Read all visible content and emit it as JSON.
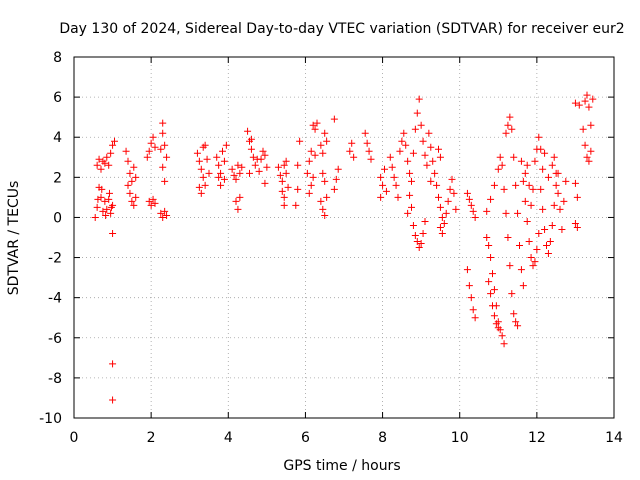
{
  "chart_data": {
    "type": "scatter",
    "title": "Day 130 of 2024, Sidereal Day-to-day VTEC variation (SDTVAR) for receiver eur2",
    "xlabel": "GPS time / hours",
    "ylabel": "SDTVAR / TECUs",
    "xlim": [
      0,
      14
    ],
    "ylim": [
      -10,
      8
    ],
    "xticks": [
      0,
      2,
      4,
      6,
      8,
      10,
      12,
      14
    ],
    "yticks": [
      -10,
      -8,
      -6,
      -4,
      -2,
      0,
      2,
      4,
      6,
      8
    ],
    "grid": true,
    "marker": "+",
    "color": "#ff0000",
    "series": [
      {
        "name": "SDTVAR",
        "points": [
          [
            0.6,
            2.6
          ],
          [
            0.65,
            2.9
          ],
          [
            0.7,
            2.4
          ],
          [
            0.75,
            2.8
          ],
          [
            0.8,
            2.7
          ],
          [
            0.85,
            3.0
          ],
          [
            0.9,
            2.6
          ],
          [
            0.95,
            3.2
          ],
          [
            1.0,
            3.6
          ],
          [
            1.05,
            3.8
          ],
          [
            0.55,
            0.0
          ],
          [
            0.6,
            0.5
          ],
          [
            0.65,
            1.5
          ],
          [
            0.7,
            1.0
          ],
          [
            0.75,
            0.3
          ],
          [
            0.8,
            0.8
          ],
          [
            0.85,
            0.4
          ],
          [
            0.9,
            0.9
          ],
          [
            0.95,
            0.2
          ],
          [
            1.0,
            0.6
          ],
          [
            0.62,
            0.9
          ],
          [
            0.72,
            1.4
          ],
          [
            0.82,
            0.1
          ],
          [
            0.92,
            1.2
          ],
          [
            0.97,
            0.5
          ],
          [
            1.0,
            -0.8
          ],
          [
            1.0,
            -7.3
          ],
          [
            1.0,
            -9.1
          ],
          [
            1.35,
            3.3
          ],
          [
            1.4,
            2.8
          ],
          [
            1.45,
            2.2
          ],
          [
            1.5,
            1.8
          ],
          [
            1.55,
            2.5
          ],
          [
            1.6,
            2.0
          ],
          [
            1.45,
            1.2
          ],
          [
            1.5,
            0.8
          ],
          [
            1.55,
            0.6
          ],
          [
            1.6,
            1.0
          ],
          [
            1.4,
            1.6
          ],
          [
            1.9,
            3.0
          ],
          [
            1.95,
            3.3
          ],
          [
            2.0,
            3.7
          ],
          [
            2.05,
            4.0
          ],
          [
            2.1,
            3.5
          ],
          [
            1.95,
            0.8
          ],
          [
            2.0,
            0.6
          ],
          [
            2.05,
            0.9
          ],
          [
            2.1,
            0.7
          ],
          [
            2.25,
            3.4
          ],
          [
            2.3,
            4.2
          ],
          [
            2.35,
            3.6
          ],
          [
            2.4,
            3.0
          ],
          [
            2.3,
            4.7
          ],
          [
            2.25,
            0.2
          ],
          [
            2.3,
            0.0
          ],
          [
            2.35,
            0.3
          ],
          [
            2.4,
            0.1
          ],
          [
            2.3,
            2.5
          ],
          [
            2.35,
            1.8
          ],
          [
            3.2,
            3.2
          ],
          [
            3.25,
            2.8
          ],
          [
            3.3,
            2.4
          ],
          [
            3.35,
            2.0
          ],
          [
            3.4,
            1.6
          ],
          [
            3.3,
            1.2
          ],
          [
            3.35,
            3.5
          ],
          [
            3.45,
            2.9
          ],
          [
            3.5,
            2.2
          ],
          [
            3.4,
            3.6
          ],
          [
            3.25,
            1.5
          ],
          [
            3.7,
            3.0
          ],
          [
            3.75,
            2.6
          ],
          [
            3.8,
            2.2
          ],
          [
            3.85,
            3.3
          ],
          [
            3.9,
            2.8
          ],
          [
            3.95,
            3.6
          ],
          [
            3.8,
            1.6
          ],
          [
            3.9,
            1.9
          ],
          [
            3.75,
            2.0
          ],
          [
            4.1,
            2.4
          ],
          [
            4.15,
            2.1
          ],
          [
            4.2,
            1.9
          ],
          [
            4.25,
            2.6
          ],
          [
            4.3,
            2.2
          ],
          [
            4.2,
            0.8
          ],
          [
            4.25,
            0.4
          ],
          [
            4.3,
            1.0
          ],
          [
            4.35,
            2.5
          ],
          [
            4.5,
            4.3
          ],
          [
            4.55,
            3.8
          ],
          [
            4.6,
            3.4
          ],
          [
            4.65,
            3.0
          ],
          [
            4.7,
            2.6
          ],
          [
            4.55,
            2.2
          ],
          [
            4.6,
            3.9
          ],
          [
            4.75,
            2.9
          ],
          [
            4.8,
            2.3
          ],
          [
            4.85,
            2.9
          ],
          [
            4.9,
            3.3
          ],
          [
            4.95,
            3.1
          ],
          [
            5.0,
            2.5
          ],
          [
            4.95,
            1.7
          ],
          [
            5.3,
            2.5
          ],
          [
            5.35,
            2.1
          ],
          [
            5.4,
            1.8
          ],
          [
            5.45,
            2.6
          ],
          [
            5.5,
            2.2
          ],
          [
            5.4,
            1.3
          ],
          [
            5.45,
            1.0
          ],
          [
            5.5,
            2.8
          ],
          [
            5.55,
            1.5
          ],
          [
            5.45,
            0.6
          ],
          [
            5.75,
            0.6
          ],
          [
            5.8,
            1.4
          ],
          [
            5.85,
            3.8
          ],
          [
            5.8,
            2.6
          ],
          [
            6.05,
            2.2
          ],
          [
            6.1,
            2.8
          ],
          [
            6.15,
            3.3
          ],
          [
            6.2,
            4.6
          ],
          [
            6.25,
            4.4
          ],
          [
            6.3,
            4.7
          ],
          [
            6.15,
            1.6
          ],
          [
            6.2,
            2.0
          ],
          [
            6.1,
            1.2
          ],
          [
            6.25,
            3.1
          ],
          [
            6.4,
            3.6
          ],
          [
            6.45,
            3.2
          ],
          [
            6.5,
            4.2
          ],
          [
            6.55,
            3.8
          ],
          [
            6.45,
            2.2
          ],
          [
            6.5,
            1.8
          ],
          [
            6.4,
            0.8
          ],
          [
            6.45,
            0.4
          ],
          [
            6.5,
            0.1
          ],
          [
            6.55,
            1.0
          ],
          [
            6.75,
            1.4
          ],
          [
            6.8,
            1.9
          ],
          [
            6.85,
            2.4
          ],
          [
            6.75,
            4.9
          ],
          [
            7.15,
            3.3
          ],
          [
            7.2,
            3.7
          ],
          [
            7.25,
            3.0
          ],
          [
            7.55,
            4.2
          ],
          [
            7.6,
            3.7
          ],
          [
            7.65,
            3.3
          ],
          [
            7.7,
            2.9
          ],
          [
            7.95,
            2.0
          ],
          [
            8.0,
            1.6
          ],
          [
            8.05,
            2.4
          ],
          [
            8.1,
            1.3
          ],
          [
            7.95,
            1.0
          ],
          [
            8.2,
            3.0
          ],
          [
            8.25,
            2.5
          ],
          [
            8.3,
            2.0
          ],
          [
            8.35,
            1.6
          ],
          [
            8.4,
            1.0
          ],
          [
            8.45,
            3.3
          ],
          [
            8.5,
            3.8
          ],
          [
            8.55,
            4.2
          ],
          [
            8.6,
            3.6
          ],
          [
            8.65,
            2.8
          ],
          [
            8.7,
            2.2
          ],
          [
            8.75,
            1.8
          ],
          [
            8.8,
            3.2
          ],
          [
            8.85,
            4.4
          ],
          [
            8.9,
            5.2
          ],
          [
            8.95,
            5.9
          ],
          [
            9.0,
            4.6
          ],
          [
            9.05,
            3.8
          ],
          [
            9.1,
            3.1
          ],
          [
            9.15,
            2.6
          ],
          [
            8.8,
            -0.4
          ],
          [
            8.85,
            -0.9
          ],
          [
            8.9,
            -1.2
          ],
          [
            8.95,
            -1.5
          ],
          [
            9.0,
            -1.3
          ],
          [
            9.05,
            -0.8
          ],
          [
            9.1,
            -0.2
          ],
          [
            8.75,
            0.5
          ],
          [
            8.7,
            1.1
          ],
          [
            8.65,
            0.2
          ],
          [
            9.2,
            4.2
          ],
          [
            9.25,
            3.5
          ],
          [
            9.3,
            2.8
          ],
          [
            9.35,
            2.2
          ],
          [
            9.4,
            1.6
          ],
          [
            9.45,
            1.0
          ],
          [
            9.5,
            0.5
          ],
          [
            9.55,
            0.0
          ],
          [
            9.6,
            -0.3
          ],
          [
            9.65,
            0.2
          ],
          [
            9.7,
            0.8
          ],
          [
            9.75,
            1.4
          ],
          [
            9.8,
            1.9
          ],
          [
            9.85,
            1.2
          ],
          [
            9.9,
            0.4
          ],
          [
            9.55,
            -0.8
          ],
          [
            9.5,
            -0.5
          ],
          [
            9.45,
            3.4
          ],
          [
            9.5,
            3.0
          ],
          [
            9.25,
            1.8
          ],
          [
            10.2,
            1.2
          ],
          [
            10.25,
            0.9
          ],
          [
            10.3,
            0.6
          ],
          [
            10.35,
            0.3
          ],
          [
            10.4,
            0.0
          ],
          [
            10.2,
            -2.6
          ],
          [
            10.25,
            -3.4
          ],
          [
            10.3,
            -4.0
          ],
          [
            10.35,
            -4.6
          ],
          [
            10.4,
            -5.0
          ],
          [
            10.7,
            -1.0
          ],
          [
            10.75,
            -1.4
          ],
          [
            10.8,
            -2.0
          ],
          [
            10.85,
            -2.8
          ],
          [
            10.9,
            -3.6
          ],
          [
            10.95,
            -4.4
          ],
          [
            11.0,
            -5.2
          ],
          [
            11.05,
            -5.6
          ],
          [
            11.1,
            -5.9
          ],
          [
            11.15,
            -6.3
          ],
          [
            10.75,
            -3.2
          ],
          [
            10.8,
            -3.8
          ],
          [
            10.85,
            -4.4
          ],
          [
            10.9,
            -4.9
          ],
          [
            10.95,
            -5.3
          ],
          [
            11.0,
            -5.5
          ],
          [
            10.7,
            0.3
          ],
          [
            10.8,
            0.9
          ],
          [
            10.9,
            1.6
          ],
          [
            11.0,
            2.4
          ],
          [
            11.05,
            3.0
          ],
          [
            11.1,
            2.6
          ],
          [
            11.15,
            1.4
          ],
          [
            11.2,
            0.2
          ],
          [
            11.25,
            -1.0
          ],
          [
            11.3,
            -2.4
          ],
          [
            11.35,
            -3.8
          ],
          [
            11.4,
            -4.8
          ],
          [
            11.45,
            -5.2
          ],
          [
            11.5,
            -5.4
          ],
          [
            11.2,
            4.2
          ],
          [
            11.25,
            4.6
          ],
          [
            11.3,
            5.0
          ],
          [
            11.35,
            4.4
          ],
          [
            11.4,
            3.0
          ],
          [
            11.45,
            1.6
          ],
          [
            11.5,
            0.2
          ],
          [
            11.55,
            -1.4
          ],
          [
            11.6,
            -2.6
          ],
          [
            11.65,
            -3.4
          ],
          [
            11.6,
            2.8
          ],
          [
            11.65,
            1.8
          ],
          [
            11.7,
            0.8
          ],
          [
            11.75,
            -0.2
          ],
          [
            11.8,
            -1.2
          ],
          [
            11.85,
            -2.0
          ],
          [
            11.9,
            -2.4
          ],
          [
            11.95,
            -2.2
          ],
          [
            12.0,
            -1.6
          ],
          [
            12.05,
            -0.8
          ],
          [
            11.7,
            2.2
          ],
          [
            11.75,
            2.6
          ],
          [
            11.8,
            1.6
          ],
          [
            11.85,
            0.6
          ],
          [
            11.9,
            1.4
          ],
          [
            11.95,
            2.8
          ],
          [
            12.0,
            3.4
          ],
          [
            12.05,
            4.0
          ],
          [
            12.1,
            3.4
          ],
          [
            12.15,
            2.4
          ],
          [
            12.1,
            1.4
          ],
          [
            12.15,
            0.4
          ],
          [
            12.2,
            -0.6
          ],
          [
            12.25,
            -1.4
          ],
          [
            12.3,
            -1.8
          ],
          [
            12.35,
            -1.2
          ],
          [
            12.4,
            -0.4
          ],
          [
            12.45,
            0.6
          ],
          [
            12.5,
            1.6
          ],
          [
            12.55,
            2.2
          ],
          [
            12.4,
            2.6
          ],
          [
            12.45,
            3.0
          ],
          [
            12.5,
            2.2
          ],
          [
            12.55,
            1.2
          ],
          [
            12.6,
            0.4
          ],
          [
            12.65,
            -0.6
          ],
          [
            12.7,
            0.8
          ],
          [
            12.75,
            1.8
          ],
          [
            12.3,
            2.0
          ],
          [
            12.2,
            3.2
          ],
          [
            13.0,
            5.7
          ],
          [
            13.1,
            5.6
          ],
          [
            13.0,
            1.7
          ],
          [
            13.05,
            1.0
          ],
          [
            13.0,
            -0.3
          ],
          [
            13.05,
            -0.5
          ],
          [
            13.2,
            4.4
          ],
          [
            13.25,
            3.6
          ],
          [
            13.3,
            3.0
          ],
          [
            13.35,
            2.8
          ],
          [
            13.25,
            5.8
          ],
          [
            13.3,
            6.1
          ],
          [
            13.35,
            5.5
          ],
          [
            13.4,
            4.6
          ],
          [
            13.4,
            3.3
          ],
          [
            13.45,
            5.9
          ]
        ]
      }
    ]
  }
}
